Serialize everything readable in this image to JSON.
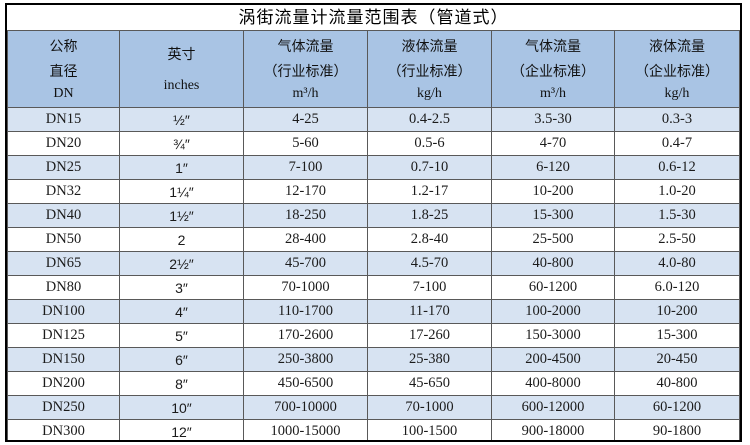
{
  "title": "涡街流量计流量范围表（管道式）",
  "colors": {
    "header_bg": "#a9c4e4",
    "stripe_bg": "#d7e3f2",
    "grid": "#595959",
    "outer_border": "#000000"
  },
  "table": {
    "columns": [
      {
        "id": "dn",
        "lines": [
          "公称",
          "直径",
          "DN"
        ]
      },
      {
        "id": "inches",
        "lines": [
          "英寸",
          "inches"
        ]
      },
      {
        "id": "gas-industry",
        "lines": [
          "气体流量",
          "（行业标准）",
          "m³/h"
        ]
      },
      {
        "id": "liquid-industry",
        "lines": [
          "液体流量",
          "（行业标准）",
          "kg/h"
        ]
      },
      {
        "id": "gas-enterprise",
        "lines": [
          "气体流量",
          "（企业标准）",
          "m³/h"
        ]
      },
      {
        "id": "liquid-enterprise",
        "lines": [
          "液体流量",
          "（企业标准）",
          "kg/h"
        ]
      }
    ],
    "rows": [
      [
        "DN15",
        "½″",
        "4-25",
        "0.4-2.5",
        "3.5-30",
        "0.3-3"
      ],
      [
        "DN20",
        "¾″",
        "5-60",
        "0.5-6",
        "4-70",
        "0.4-7"
      ],
      [
        "DN25",
        "1″",
        "7-100",
        "0.7-10",
        "6-120",
        "0.6-12"
      ],
      [
        "DN32",
        "1¼″",
        "12-170",
        "1.2-17",
        "10-200",
        "1.0-20"
      ],
      [
        "DN40",
        "1½″",
        "18-250",
        "1.8-25",
        "15-300",
        "1.5-30"
      ],
      [
        "DN50",
        "2",
        "28-400",
        "2.8-40",
        "25-500",
        "2.5-50"
      ],
      [
        "DN65",
        "2½″",
        "45-700",
        "4.5-70",
        "40-800",
        "4.0-80"
      ],
      [
        "DN80",
        "3″",
        "70-1000",
        "7-100",
        "60-1200",
        "6.0-120"
      ],
      [
        "DN100",
        "4″",
        "110-1700",
        "11-170",
        "100-2000",
        "10-200"
      ],
      [
        "DN125",
        "5″",
        "170-2600",
        "17-260",
        "150-3000",
        "15-300"
      ],
      [
        "DN150",
        "6″",
        "250-3800",
        "25-380",
        "200-4500",
        "20-450"
      ],
      [
        "DN200",
        "8″",
        "450-6500",
        "45-650",
        "400-8000",
        "40-800"
      ],
      [
        "DN250",
        "10″",
        "700-10000",
        "70-1000",
        "600-12000",
        "60-1200"
      ],
      [
        "DN300",
        "12″",
        "1000-15000",
        "100-1500",
        "900-18000",
        "90-1800"
      ]
    ]
  }
}
